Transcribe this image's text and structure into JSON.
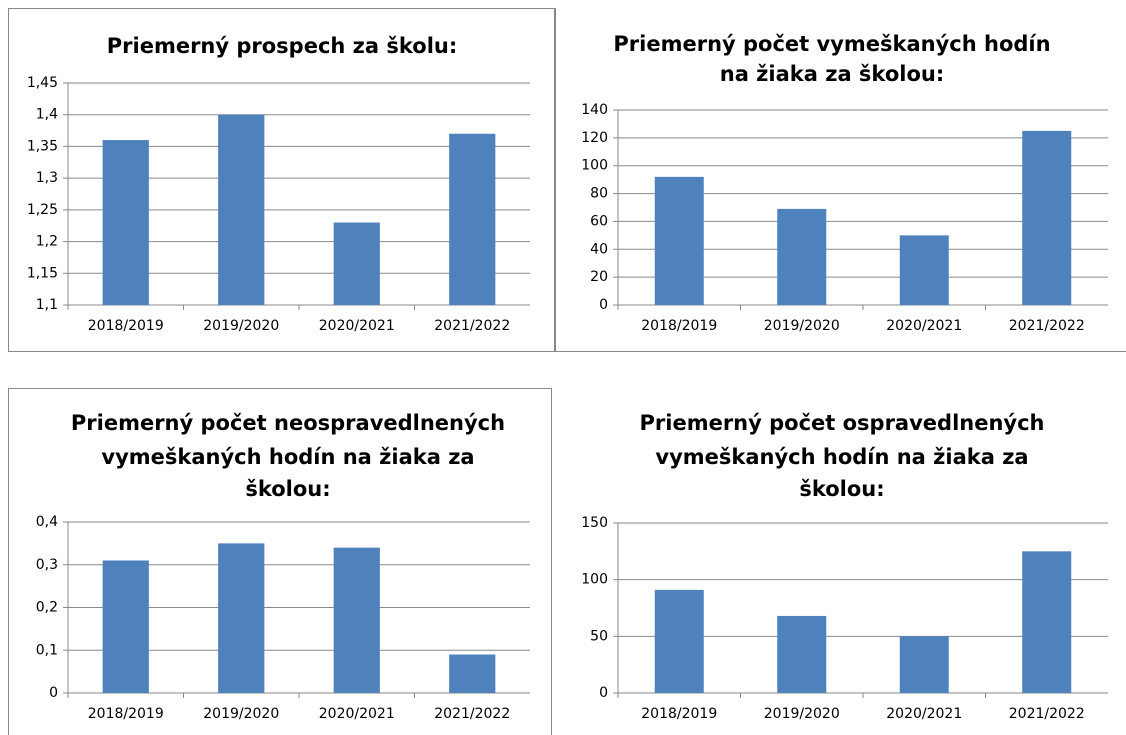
{
  "chart_data": [
    {
      "type": "bar",
      "title": [
        "Priemerný prospech za školu:"
      ],
      "categories": [
        "2018/2019",
        "2019/2020",
        "2020/2021",
        "2021/2022"
      ],
      "values": [
        1.36,
        1.4,
        1.23,
        1.37
      ],
      "color": "#4f81bd",
      "ylim": [
        1.1,
        1.45
      ],
      "yticks": [
        {
          "value": 1.1,
          "label": "1,1"
        },
        {
          "value": 1.15,
          "label": "1,15"
        },
        {
          "value": 1.2,
          "label": "1,2"
        },
        {
          "value": 1.25,
          "label": "1,25"
        },
        {
          "value": 1.3,
          "label": "1,3"
        },
        {
          "value": 1.35,
          "label": "1,35"
        },
        {
          "value": 1.4,
          "label": "1,4"
        },
        {
          "value": 1.45,
          "label": "1,45"
        }
      ],
      "grid": true
    },
    {
      "type": "bar",
      "title": [
        "Priemerný počet vymeškaných hodín",
        "na žiaka za školou:"
      ],
      "categories": [
        "2018/2019",
        "2019/2020",
        "2020/2021",
        "2021/2022"
      ],
      "values": [
        92,
        69,
        50,
        125
      ],
      "color": "#4f81bd",
      "ylim": [
        0,
        140
      ],
      "yticks": [
        0,
        20,
        40,
        60,
        80,
        100,
        120,
        140
      ],
      "grid": true
    },
    {
      "type": "bar",
      "title": [
        "Priemerný počet neospravedlnených",
        "vymeškaných hodín na žiaka za",
        "školou:"
      ],
      "categories": [
        "2018/2019",
        "2019/2020",
        "2020/2021",
        "2021/2022"
      ],
      "values": [
        0.31,
        0.35,
        0.34,
        0.09
      ],
      "color": "#4f81bd",
      "ylim": [
        0,
        0.4
      ],
      "yticks": [
        0,
        {
          "value": 0.1,
          "label": "0,1"
        },
        {
          "value": 0.2,
          "label": "0,2"
        },
        {
          "value": 0.3,
          "label": "0,3"
        },
        {
          "value": 0.4,
          "label": "0,4"
        }
      ],
      "grid": true
    },
    {
      "type": "bar",
      "title": [
        "Priemerný počet ospravedlnených",
        "vymeškaných hodín na žiaka za",
        "školou:"
      ],
      "categories": [
        "2018/2019",
        "2019/2020",
        "2020/2021",
        "2021/2022"
      ],
      "values": [
        91,
        68,
        50,
        125
      ],
      "color": "#4f81bd",
      "ylim": [
        0,
        150
      ],
      "yticks": [
        0,
        50,
        100,
        150
      ],
      "grid": true
    }
  ]
}
